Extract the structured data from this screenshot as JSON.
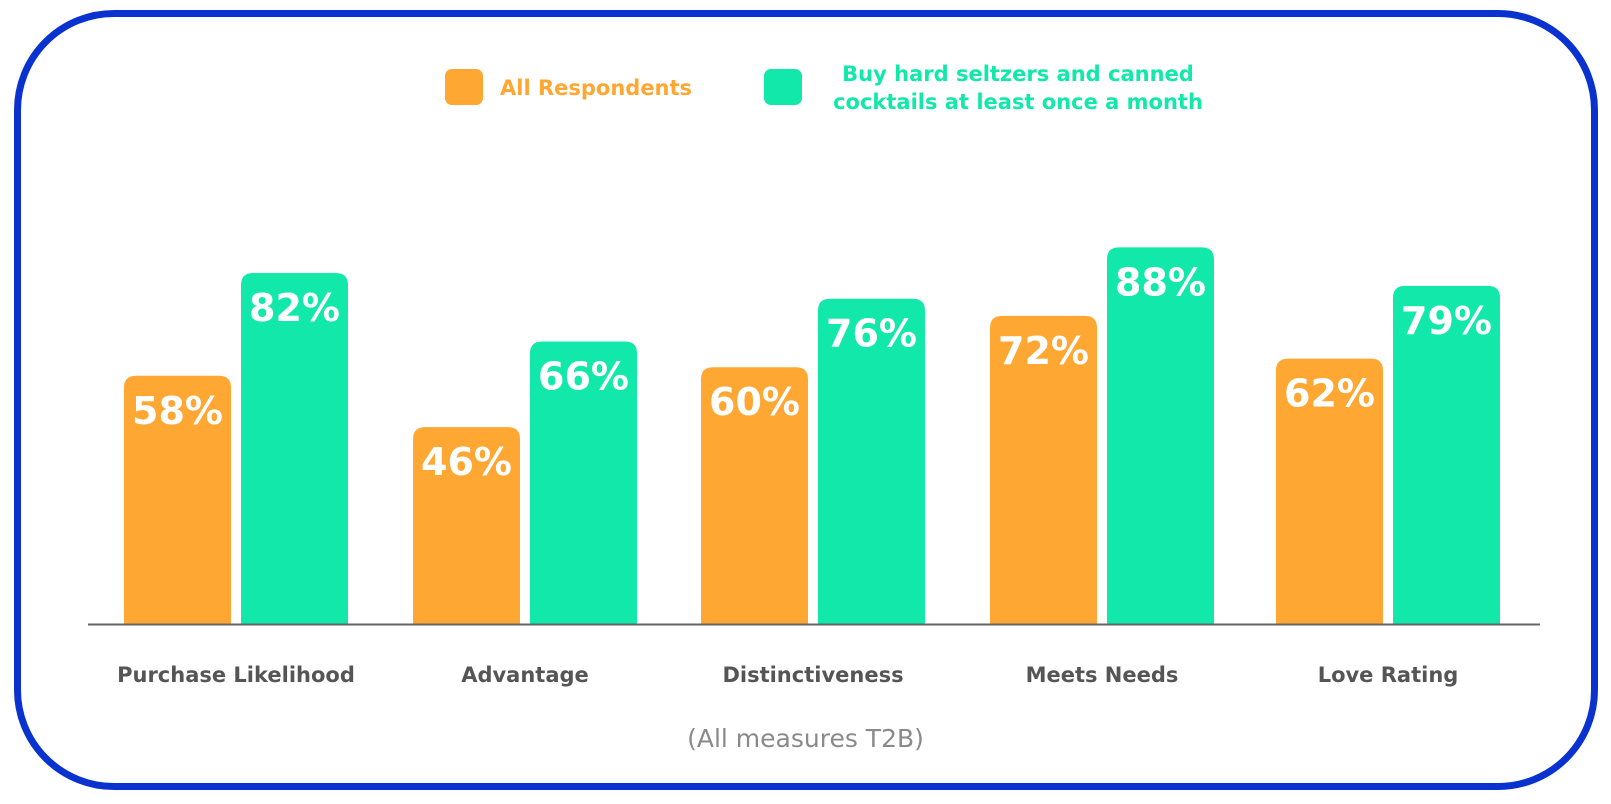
{
  "colors": {
    "border": "#0a32cf",
    "all_respondents": "#ffa733",
    "monthly_buyers": "#13e8ab",
    "axis": "#666666",
    "category_label": "#555555",
    "bar_label": "#ffffff",
    "footnote": "#8a8a8a"
  },
  "legend": {
    "all_respondents": "All Respondents",
    "monthly_buyers": "Buy hard seltzers and canned\ncocktails at least once a month"
  },
  "footnote": "(All measures T2B)",
  "chart_data": {
    "type": "bar",
    "categories": [
      "Purchase Likelihood",
      "Advantage",
      "Distinctiveness",
      "Meets Needs",
      "Love Rating"
    ],
    "series": [
      {
        "name": "All Respondents",
        "values": [
          58,
          46,
          60,
          72,
          62
        ],
        "labels": [
          "58%",
          "46%",
          "60%",
          "72%",
          "62%"
        ]
      },
      {
        "name": "Buy hard seltzers and canned cocktails at least once a month",
        "values": [
          82,
          66,
          76,
          88,
          79
        ],
        "labels": [
          "82%",
          "66%",
          "76%",
          "88%",
          "79%"
        ]
      }
    ],
    "ylim": [
      0,
      100
    ],
    "grid": false,
    "legend_position": "top"
  }
}
